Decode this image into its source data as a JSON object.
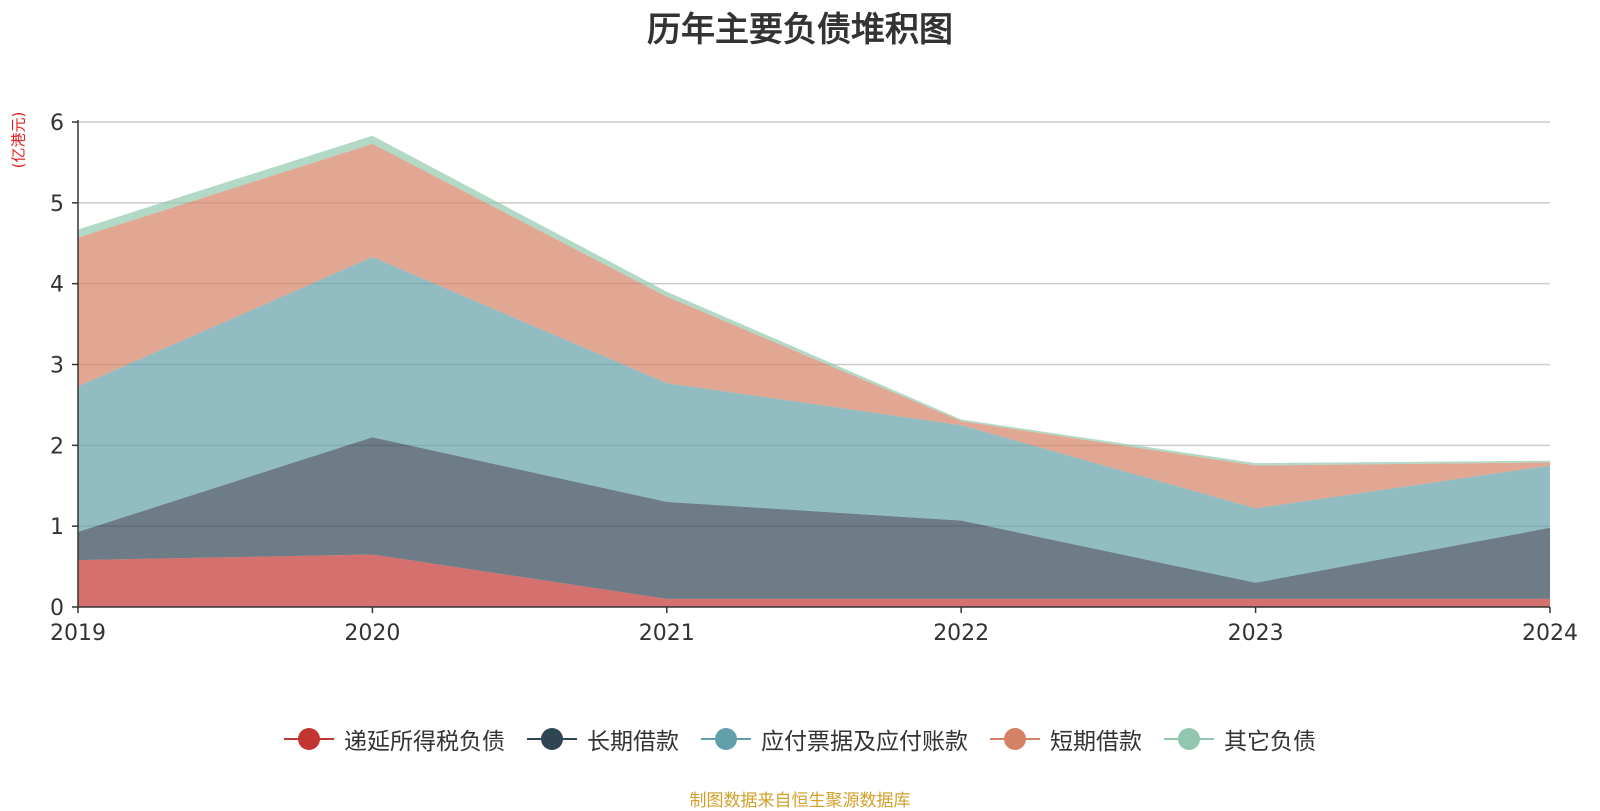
{
  "chart_data": {
    "type": "area",
    "stacked": true,
    "title": "历年主要负债堆积图",
    "ylabel": "(亿港元)",
    "xlabel": "",
    "categories": [
      "2019",
      "2020",
      "2021",
      "2022",
      "2023",
      "2024"
    ],
    "ylim": [
      0,
      6
    ],
    "yticks": [
      0,
      1,
      2,
      3,
      4,
      5,
      6
    ],
    "grid": true,
    "legend_position": "bottom",
    "series": [
      {
        "name": "递延所得税负债",
        "color": "#c23531",
        "values": [
          0.58,
          0.65,
          0.1,
          0.1,
          0.1,
          0.1
        ]
      },
      {
        "name": "长期借款",
        "color": "#2f4554",
        "values": [
          0.35,
          1.45,
          1.2,
          0.97,
          0.2,
          0.88
        ]
      },
      {
        "name": "应付票据及应付账款",
        "color": "#61a0a8",
        "values": [
          1.8,
          2.23,
          1.47,
          1.18,
          0.92,
          0.77
        ]
      },
      {
        "name": "短期借款",
        "color": "#d48265",
        "values": [
          1.84,
          1.4,
          1.07,
          0.05,
          0.53,
          0.04
        ]
      },
      {
        "name": "其它负债",
        "color": "#91c7ae",
        "values": [
          0.1,
          0.1,
          0.06,
          0.02,
          0.03,
          0.02
        ]
      }
    ]
  },
  "source_note": "制图数据来自恒生聚源数据库"
}
